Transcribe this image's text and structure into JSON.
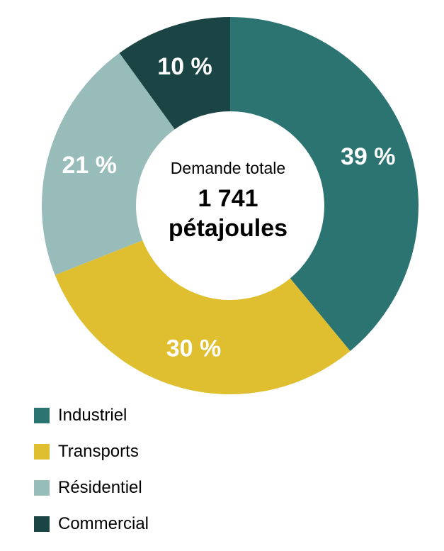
{
  "chart_data": {
    "type": "pie",
    "donut": true,
    "center_caption": "Demande totale",
    "center_value_line1": "1 741",
    "center_value_line2": "pétajoules",
    "slices": [
      {
        "name": "Industriel",
        "value": 39,
        "label": "39 %",
        "color": "#2b7472"
      },
      {
        "name": "Transports",
        "value": 30,
        "label": "30 %",
        "color": "#dfbf2f"
      },
      {
        "name": "Résidentiel",
        "value": 21,
        "label": "21 %",
        "color": "#98bcba"
      },
      {
        "name": "Commercial",
        "value": 10,
        "label": "10 %",
        "color": "#1b4544"
      }
    ],
    "legend_position": "bottom-left"
  }
}
